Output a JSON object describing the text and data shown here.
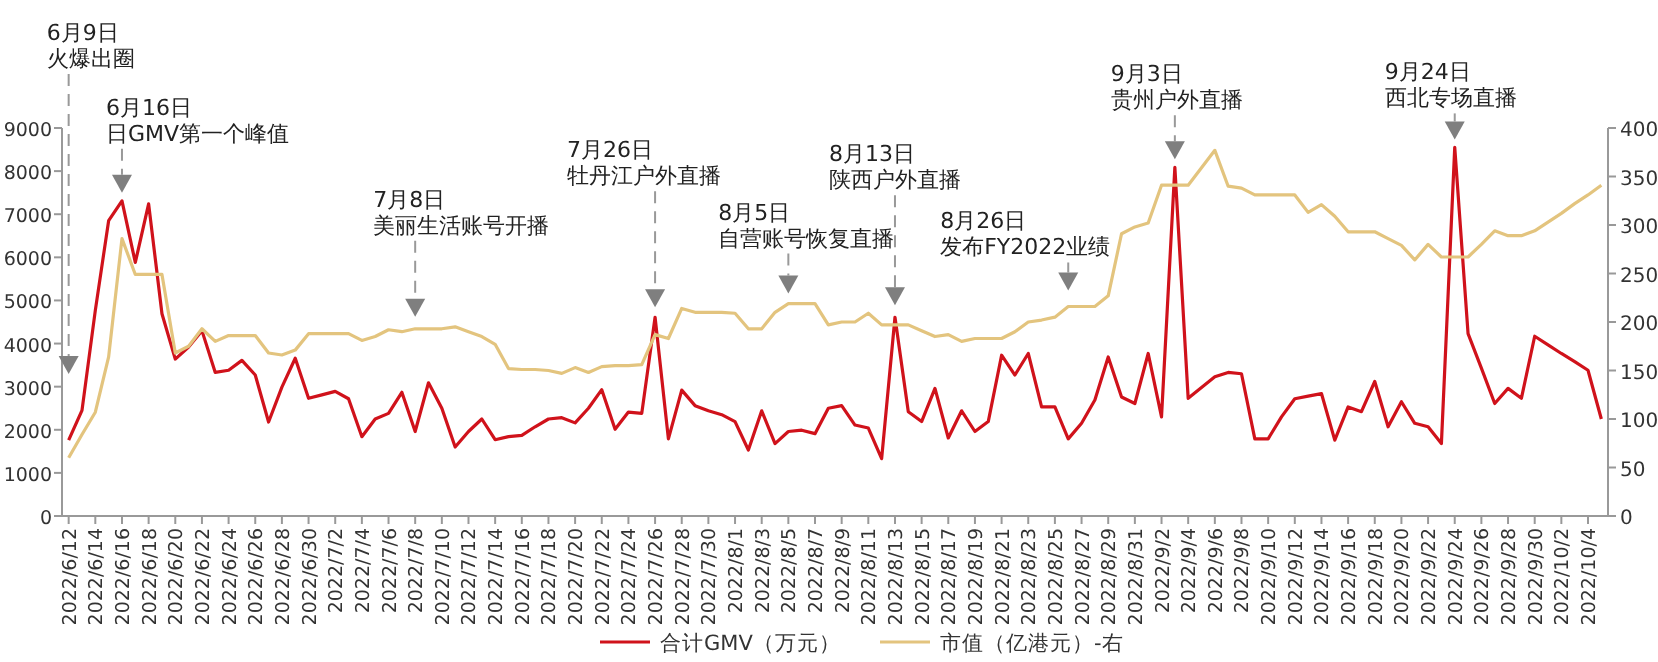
{
  "chart_data": {
    "type": "line",
    "x": [
      "2022-06-12",
      "2022-06-13",
      "2022-06-14",
      "2022-06-15",
      "2022-06-16",
      "2022-06-17",
      "2022-06-18",
      "2022-06-19",
      "2022-06-20",
      "2022-06-21",
      "2022-06-22",
      "2022-06-23",
      "2022-06-24",
      "2022-06-25",
      "2022-06-26",
      "2022-06-27",
      "2022-06-28",
      "2022-06-29",
      "2022-06-30",
      "2022-07-01",
      "2022-07-02",
      "2022-07-03",
      "2022-07-04",
      "2022-07-05",
      "2022-07-06",
      "2022-07-07",
      "2022-07-08",
      "2022-07-09",
      "2022-07-10",
      "2022-07-11",
      "2022-07-12",
      "2022-07-13",
      "2022-07-14",
      "2022-07-15",
      "2022-07-16",
      "2022-07-17",
      "2022-07-18",
      "2022-07-19",
      "2022-07-20",
      "2022-07-21",
      "2022-07-22",
      "2022-07-23",
      "2022-07-24",
      "2022-07-25",
      "2022-07-26",
      "2022-07-27",
      "2022-07-28",
      "2022-07-29",
      "2022-07-30",
      "2022-07-31",
      "2022-08-01",
      "2022-08-02",
      "2022-08-03",
      "2022-08-04",
      "2022-08-05",
      "2022-08-06",
      "2022-08-07",
      "2022-08-08",
      "2022-08-09",
      "2022-08-10",
      "2022-08-11",
      "2022-08-12",
      "2022-08-13",
      "2022-08-14",
      "2022-08-15",
      "2022-08-16",
      "2022-08-17",
      "2022-08-18",
      "2022-08-19",
      "2022-08-20",
      "2022-08-21",
      "2022-08-22",
      "2022-08-23",
      "2022-08-24",
      "2022-08-25",
      "2022-08-26",
      "2022-08-27",
      "2022-08-28",
      "2022-08-29",
      "2022-08-30",
      "2022-08-31",
      "2022-09-01",
      "2022-09-02",
      "2022-09-03",
      "2022-09-04",
      "2022-09-05",
      "2022-09-06",
      "2022-09-07",
      "2022-09-08",
      "2022-09-09",
      "2022-09-10",
      "2022-09-11",
      "2022-09-12",
      "2022-09-13",
      "2022-09-14",
      "2022-09-15",
      "2022-09-16",
      "2022-09-17",
      "2022-09-18",
      "2022-09-19",
      "2022-09-20",
      "2022-09-21",
      "2022-09-22",
      "2022-09-23",
      "2022-09-24",
      "2022-09-25",
      "2022-09-26",
      "2022-09-27",
      "2022-09-28",
      "2022-09-29",
      "2022-09-30",
      "2022-10-01",
      "2022-10-02",
      "2022-10-03",
      "2022-10-04",
      "2022-10-05"
    ],
    "series": [
      {
        "name": "合计GMV（万元）",
        "color": "#d0121b",
        "values": [
          1760,
          2450,
          4770,
          6850,
          7310,
          5880,
          7240,
          4690,
          3640,
          3920,
          4300,
          3330,
          3380,
          3610,
          3270,
          2180,
          2990,
          3660,
          2730,
          2810,
          2890,
          2720,
          1840,
          2250,
          2380,
          2870,
          1960,
          3090,
          2500,
          1600,
          1960,
          2250,
          1770,
          1840,
          1870,
          2070,
          2250,
          2280,
          2160,
          2500,
          2930,
          2010,
          2410,
          2380,
          4610,
          1790,
          2920,
          2560,
          2440,
          2350,
          2190,
          1530,
          2440,
          1680,
          1960,
          1990,
          1910,
          2500,
          2560,
          2110,
          2040,
          1330,
          4610,
          2420,
          2190,
          2960,
          1810,
          2440,
          1960,
          2190,
          3730,
          3270,
          3770,
          2530,
          2530,
          1790,
          2150,
          2690,
          3690,
          2760,
          2610,
          3770,
          2300,
          8090,
          2730,
          2980,
          3230,
          3330,
          3300,
          1790,
          1790,
          2300,
          2720,
          2780,
          2840,
          1760,
          2530,
          2420,
          3120,
          2070,
          2650,
          2150,
          2070,
          1680,
          8550,
          4230,
          3430,
          2610,
          2960,
          2730,
          4170,
          3970,
          3770,
          3580,
          3380,
          2250
        ]
      },
      {
        "name": "市值（亿港元）-右",
        "color": "#e3c47e",
        "axis": "y2",
        "values": [
          60,
          84,
          107,
          164,
          286,
          249,
          249,
          249,
          168,
          175,
          193,
          180,
          186,
          186,
          186,
          168,
          166,
          171,
          188,
          188,
          188,
          188,
          181,
          185,
          192,
          190,
          193,
          193,
          193,
          195,
          190,
          185,
          177,
          152,
          151,
          151,
          150,
          147,
          153,
          148,
          154,
          155,
          155,
          156,
          187,
          183,
          214,
          210,
          210,
          210,
          209,
          193,
          193,
          210,
          219,
          219,
          219,
          197,
          200,
          200,
          209,
          197,
          197,
          197,
          191,
          185,
          187,
          180,
          183,
          183,
          183,
          190,
          200,
          202,
          205,
          216,
          216,
          216,
          227,
          291,
          298,
          302,
          341,
          341,
          341,
          359,
          377,
          340,
          338,
          331,
          331,
          331,
          331,
          313,
          321,
          309,
          293,
          293,
          293,
          286,
          279,
          264,
          280,
          267,
          267,
          267,
          280,
          294,
          289,
          289,
          294,
          303,
          312,
          322,
          331,
          341
        ]
      }
    ],
    "xlim": [
      "2022-06-11T12:00",
      "2022-10-05T12:00"
    ],
    "xticks": [
      {
        "value": "2022-06-12",
        "label": "2022/6/12"
      },
      {
        "value": "2022-06-14",
        "label": "2022/6/14"
      },
      {
        "value": "2022-06-16",
        "label": "2022/6/16"
      },
      {
        "value": "2022-06-18",
        "label": "2022/6/18"
      },
      {
        "value": "2022-06-20",
        "label": "2022/6/20"
      },
      {
        "value": "2022-06-22",
        "label": "2022/6/22"
      },
      {
        "value": "2022-06-24",
        "label": "2022/6/24"
      },
      {
        "value": "2022-06-26",
        "label": "2022/6/26"
      },
      {
        "value": "2022-06-28",
        "label": "2022/6/28"
      },
      {
        "value": "2022-06-30",
        "label": "2022/6/30"
      },
      {
        "value": "2022-07-02",
        "label": "2022/7/2"
      },
      {
        "value": "2022-07-04",
        "label": "2022/7/4"
      },
      {
        "value": "2022-07-06",
        "label": "2022/7/6"
      },
      {
        "value": "2022-07-08",
        "label": "2022/7/8"
      },
      {
        "value": "2022-07-10",
        "label": "2022/7/10"
      },
      {
        "value": "2022-07-12",
        "label": "2022/7/12"
      },
      {
        "value": "2022-07-14",
        "label": "2022/7/14"
      },
      {
        "value": "2022-07-16",
        "label": "2022/7/16"
      },
      {
        "value": "2022-07-18",
        "label": "2022/7/18"
      },
      {
        "value": "2022-07-20",
        "label": "2022/7/20"
      },
      {
        "value": "2022-07-22",
        "label": "2022/7/22"
      },
      {
        "value": "2022-07-24",
        "label": "2022/7/24"
      },
      {
        "value": "2022-07-26",
        "label": "2022/7/26"
      },
      {
        "value": "2022-07-28",
        "label": "2022/7/28"
      },
      {
        "value": "2022-07-30",
        "label": "2022/7/30"
      },
      {
        "value": "2022-08-01",
        "label": "2022/8/1"
      },
      {
        "value": "2022-08-03",
        "label": "2022/8/3"
      },
      {
        "value": "2022-08-05",
        "label": "2022/8/5"
      },
      {
        "value": "2022-08-07",
        "label": "2022/8/7"
      },
      {
        "value": "2022-08-09",
        "label": "2022/8/9"
      },
      {
        "value": "2022-08-11",
        "label": "2022/8/11"
      },
      {
        "value": "2022-08-13",
        "label": "2022/8/13"
      },
      {
        "value": "2022-08-15",
        "label": "2022/8/15"
      },
      {
        "value": "2022-08-17",
        "label": "2022/8/17"
      },
      {
        "value": "2022-08-19",
        "label": "2022/8/19"
      },
      {
        "value": "2022-08-21",
        "label": "2022/8/21"
      },
      {
        "value": "2022-08-23",
        "label": "2022/8/23"
      },
      {
        "value": "2022-08-25",
        "label": "2022/8/25"
      },
      {
        "value": "2022-08-27",
        "label": "2022/8/27"
      },
      {
        "value": "2022-08-29",
        "label": "2022/8/29"
      },
      {
        "value": "2022-08-31",
        "label": "2022/8/31"
      },
      {
        "value": "2022-09-02",
        "label": "2022/9/2"
      },
      {
        "value": "2022-09-04",
        "label": "2022/9/4"
      },
      {
        "value": "2022-09-06",
        "label": "2022/9/6"
      },
      {
        "value": "2022-09-08",
        "label": "2022/9/8"
      },
      {
        "value": "2022-09-10",
        "label": "2022/9/10"
      },
      {
        "value": "2022-09-12",
        "label": "2022/9/12"
      },
      {
        "value": "2022-09-14",
        "label": "2022/9/14"
      },
      {
        "value": "2022-09-16",
        "label": "2022/9/16"
      },
      {
        "value": "2022-09-18",
        "label": "2022/9/18"
      },
      {
        "value": "2022-09-20",
        "label": "2022/9/20"
      },
      {
        "value": "2022-09-22",
        "label": "2022/9/22"
      },
      {
        "value": "2022-09-24",
        "label": "2022/9/24"
      },
      {
        "value": "2022-09-26",
        "label": "2022/9/26"
      },
      {
        "value": "2022-09-28",
        "label": "2022/9/28"
      },
      {
        "value": "2022-09-30",
        "label": "2022/9/30"
      },
      {
        "value": "2022-10-02",
        "label": "2022/10/2"
      },
      {
        "value": "2022-10-04",
        "label": "2022/10/4"
      }
    ],
    "ylim": [
      0,
      9000
    ],
    "yticks": [
      0,
      1000,
      2000,
      3000,
      4000,
      5000,
      6000,
      7000,
      8000,
      9000
    ],
    "y2lim": [
      0,
      400
    ],
    "y2ticks": [
      0,
      50,
      100,
      150,
      200,
      250,
      300,
      350,
      400
    ],
    "legend": "bottom",
    "grid": false,
    "ref_lines": [
      {
        "axis": "x",
        "value": "2022-06-12",
        "label": "6月9日火爆出圈",
        "color": "#999999",
        "line_style": "dashed"
      },
      {
        "axis": "x",
        "value": "2022-06-16",
        "label": "6月16日日GMV第一个峰值",
        "color": "#999999",
        "line_style": "dashed"
      },
      {
        "axis": "x",
        "value": "2022-07-08",
        "label": "7月8日美丽生活账号开播",
        "color": "#999999",
        "line_style": "dashed"
      },
      {
        "axis": "x",
        "value": "2022-07-26",
        "label": "7月26日牡丹江户外直播",
        "color": "#999999",
        "line_style": "dashed"
      },
      {
        "axis": "x",
        "value": "2022-08-05",
        "label": "8月5日自营账号恢复直播",
        "color": "#999999",
        "line_style": "dashed"
      },
      {
        "axis": "x",
        "value": "2022-08-13",
        "label": "8月13日陕西户外直播",
        "color": "#999999",
        "line_style": "dashed"
      },
      {
        "axis": "x",
        "value": "2022-08-26",
        "label": "8月26日发布FY2022业绩",
        "color": "#999999",
        "line_style": "dashed"
      },
      {
        "axis": "x",
        "value": "2022-09-03",
        "label": "9月3日贵州户外直播",
        "color": "#999999",
        "line_style": "dashed"
      },
      {
        "axis": "x",
        "value": "2022-09-24",
        "label": "9月24日西北专场直播",
        "color": "#999999",
        "line_style": "dashed"
      }
    ]
  }
}
